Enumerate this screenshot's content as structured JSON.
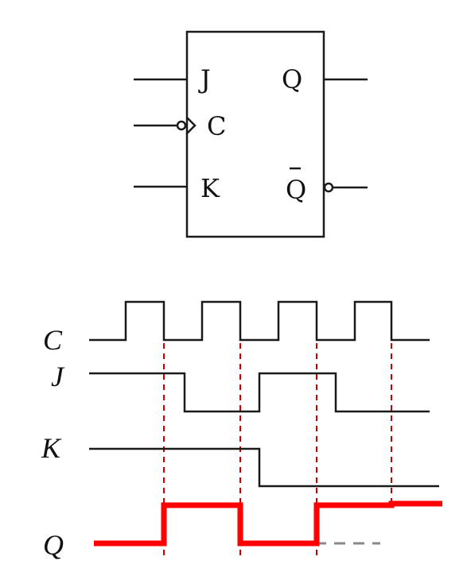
{
  "flipflop": {
    "pins": {
      "j": "J",
      "c": "C",
      "k": "K",
      "q": "Q",
      "qbar": "Q"
    }
  },
  "timing": {
    "labels": {
      "c": "C",
      "j": "J",
      "k": "K",
      "q": "Q"
    },
    "colors": {
      "signal": "#1a1a1a",
      "output": "#ff0000",
      "guide": "#cc0000"
    }
  }
}
